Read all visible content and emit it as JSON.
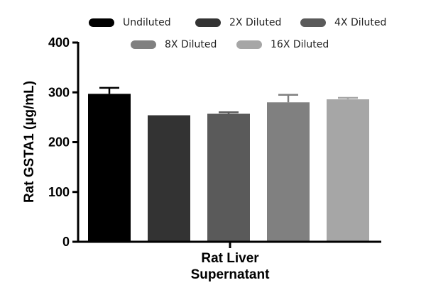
{
  "chart_data": {
    "type": "bar",
    "title": "",
    "ylabel": "Rat GSTA1 (µg/mL)",
    "xlabel_lines": [
      "Rat Liver",
      "Supernatant"
    ],
    "ylim": [
      0,
      400
    ],
    "yticks": [
      0,
      100,
      200,
      300,
      400
    ],
    "grid": false,
    "legend_position": "top",
    "series": [
      {
        "name": "Undiluted",
        "value": 297,
        "error": 12,
        "color": "#000000"
      },
      {
        "name": "2X Diluted",
        "value": 254,
        "error": 0,
        "color": "#333333"
      },
      {
        "name": "4X Diluted",
        "value": 257,
        "error": 3,
        "color": "#5a5a5a"
      },
      {
        "name": "8X Diluted",
        "value": 280,
        "error": 15,
        "color": "#808080"
      },
      {
        "name": "16X Diluted",
        "value": 286,
        "error": 3,
        "color": "#a6a6a6"
      }
    ]
  }
}
